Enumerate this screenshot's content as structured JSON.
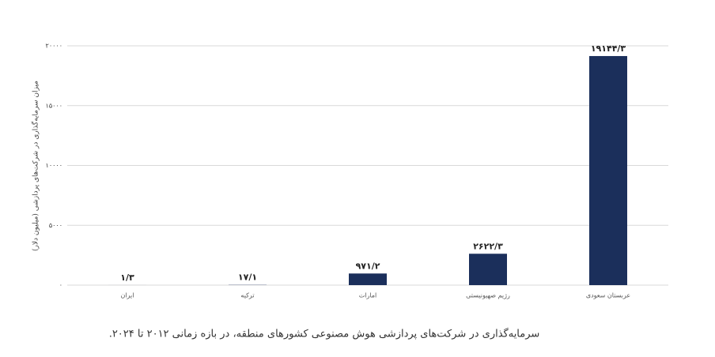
{
  "chart_data": {
    "type": "bar",
    "y_label": "میزان سرمایه‌گذاری در شرکت‌های پردازشی (میلیون دلار)",
    "caption": "سرمایه‌گذاری در شرکت‌های پردازشی هوش مصنوعی کشورهای منطقه، در بازه زمانی ۲۰۱۲ تا ۲۰۲۴.",
    "categories": [
      "ایران",
      "ترکیه",
      "امارات",
      "رژیم صهیونیستی",
      "عربستان سعودی"
    ],
    "values": [
      1.3,
      17.1,
      971.2,
      2622.3,
      19144.3
    ],
    "value_labels": [
      "۱/۳",
      "۱۷/۱",
      "۹۷۱/۲",
      "۲۶۲۲/۳",
      "۱۹۱۴۴/۳"
    ],
    "color": "#1b2f5b",
    "ylim": [
      0,
      20000
    ],
    "yticks": [
      {
        "value": 0,
        "label": "۰"
      },
      {
        "value": 5000,
        "label": "۵۰۰۰"
      },
      {
        "value": 10000,
        "label": "۱۰۰۰۰"
      },
      {
        "value": 15000,
        "label": "۱۵۰۰۰"
      },
      {
        "value": 20000,
        "label": "۲۰۰۰۰"
      }
    ],
    "grid": true
  }
}
